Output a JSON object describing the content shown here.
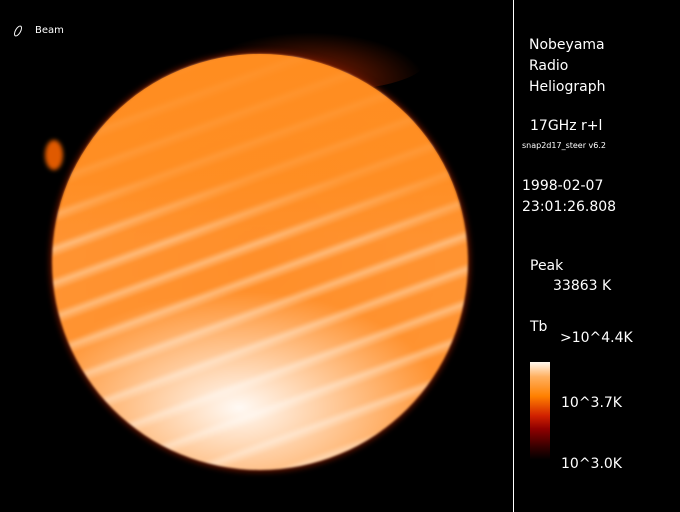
{
  "beam_label": "Beam",
  "instrument": {
    "line1": "Nobeyama",
    "line2": "Radio",
    "line3": "Heliograph"
  },
  "frequency": "17GHz r+l",
  "software": "snap2d17_steer v6.2",
  "date": "1998-02-07",
  "time": "23:01:26.808",
  "peak": {
    "label": "Peak",
    "value": "33863 K"
  },
  "colorbar": {
    "label": "Tb",
    "max": ">10^4.4K",
    "mid": "10^3.7K",
    "min": "10^3.0K",
    "colormap": [
      "#000000",
      "#900000",
      "#ff8000",
      "#fff8ef"
    ]
  }
}
